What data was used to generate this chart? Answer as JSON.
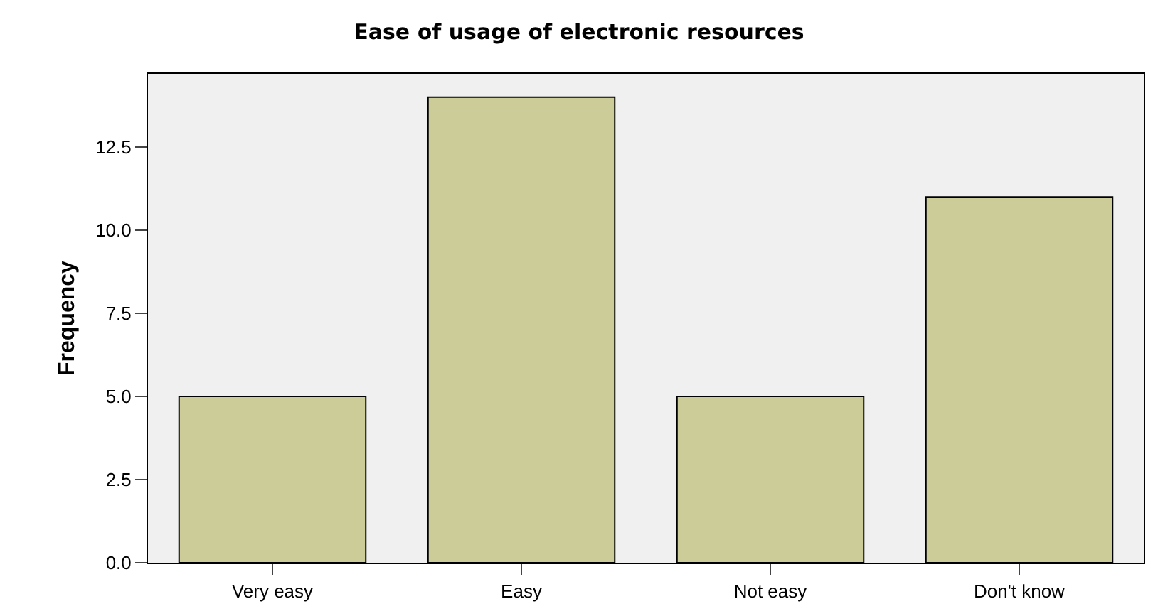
{
  "chart_data": {
    "type": "bar",
    "title": "Ease of usage of electronic resources",
    "ylabel": "Frequency",
    "categories": [
      "Very easy",
      "Easy",
      "Not easy",
      "Don't know"
    ],
    "values": [
      5,
      14,
      5,
      11
    ],
    "color": "#cccc99",
    "ylim": [
      0,
      14.7
    ],
    "yticks": [
      {
        "value": 0,
        "label": "0.0"
      },
      2.5,
      {
        "value": 5,
        "label": "5.0"
      },
      7.5,
      {
        "value": 10,
        "label": "10.0"
      },
      12.5
    ],
    "grid": false
  }
}
